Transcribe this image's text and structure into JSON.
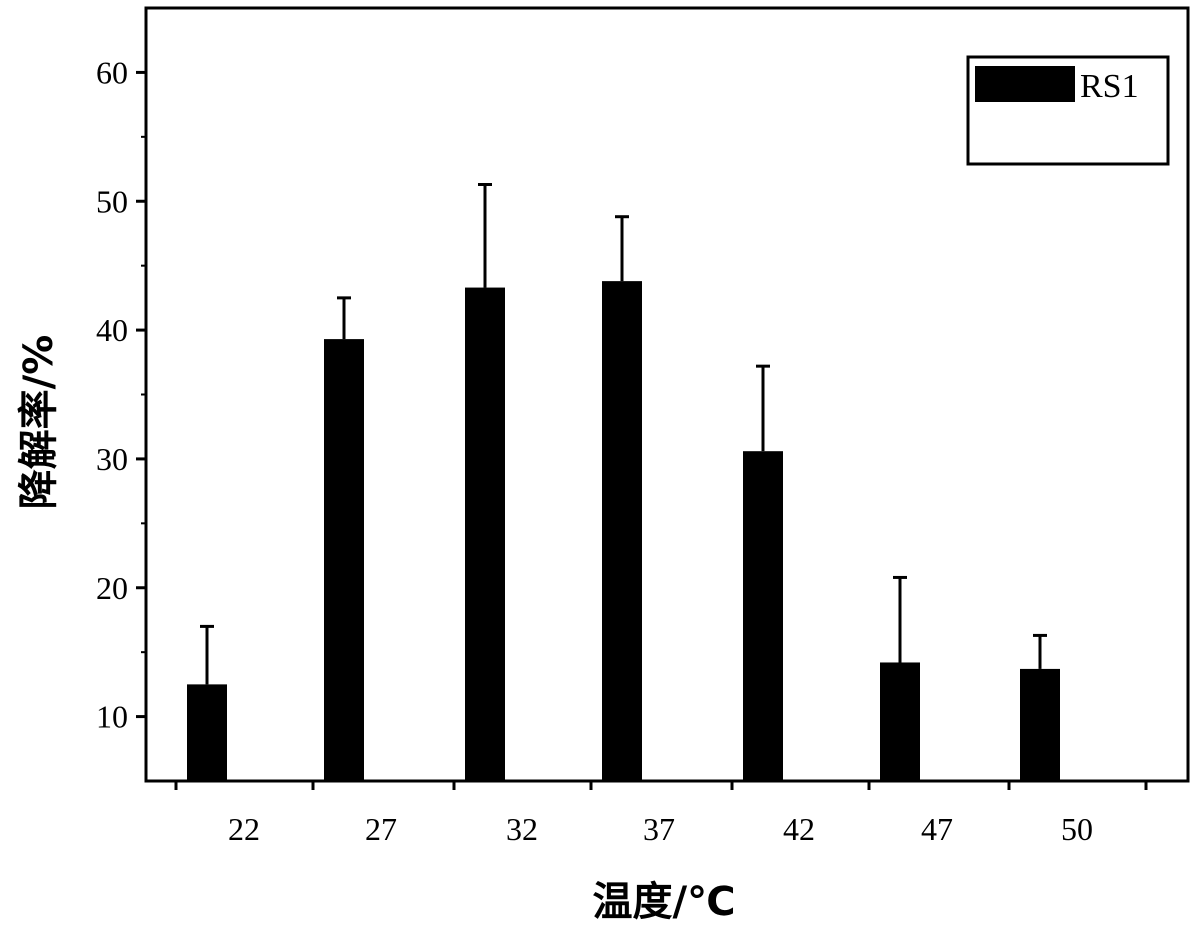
{
  "chart_data": {
    "type": "bar",
    "categories": [
      "22",
      "27",
      "32",
      "37",
      "42",
      "47",
      "50"
    ],
    "series": [
      {
        "name": "RS1",
        "values": [
          12.5,
          39.3,
          43.3,
          43.8,
          30.6,
          14.2,
          13.7
        ],
        "errors": [
          4.5,
          3.2,
          8.0,
          5.0,
          6.6,
          6.6,
          2.6
        ],
        "color": "#000000"
      }
    ],
    "xlabel": "温度/℃",
    "ylabel": "降解率/%",
    "ylim": [
      5,
      65
    ],
    "yticks": [
      10,
      20,
      30,
      40,
      50,
      60
    ],
    "grid": false,
    "legend": "top-right"
  }
}
